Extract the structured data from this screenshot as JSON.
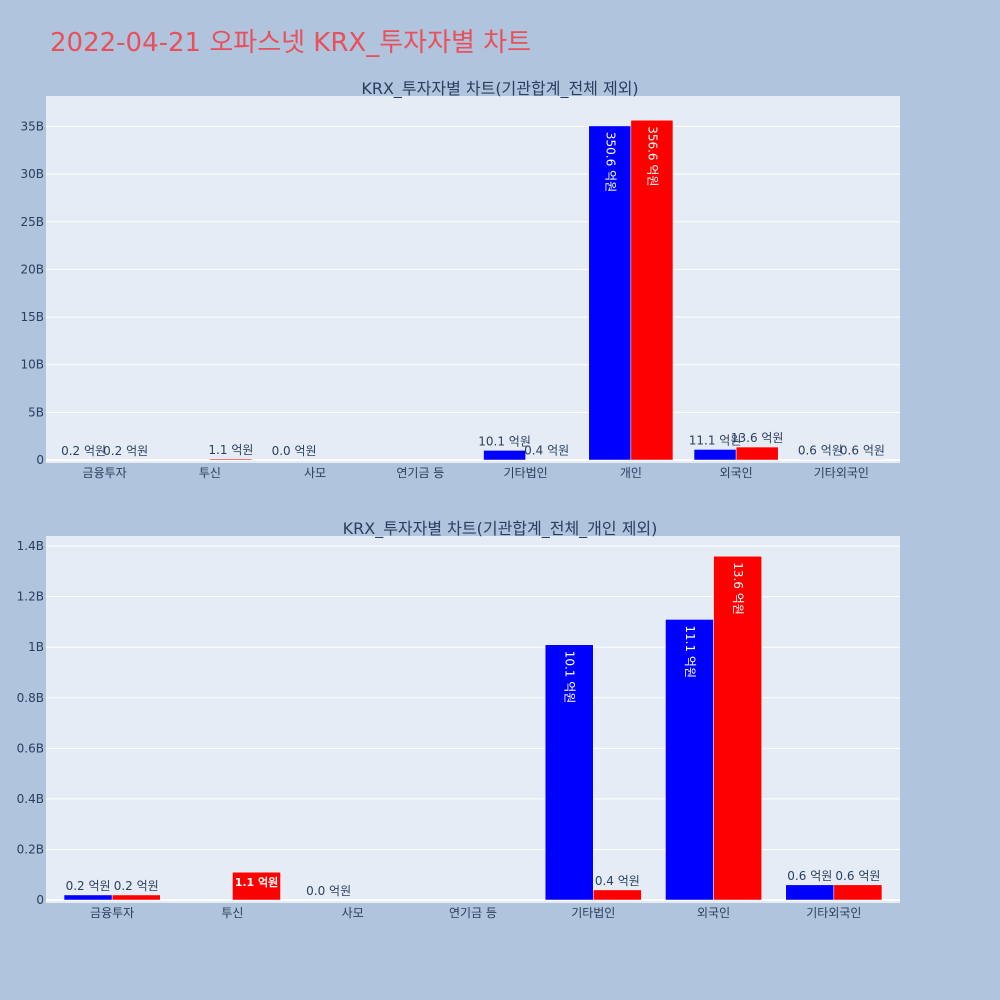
{
  "page_title": "2022-04-21 오파스넷 KRX_투자자별 차트",
  "colors": {
    "background": "#b0c4de",
    "plot_bg": "#e5ecf6",
    "series_a": "#0000ff",
    "series_b": "#ff0000",
    "title": "#e8505b"
  },
  "chart_data": [
    {
      "type": "bar",
      "title": "KRX_투자자별 차트(기관합계_전체 제외)",
      "categories": [
        "금융투자",
        "투신",
        "사모",
        "연기금 등",
        "기타법인",
        "개인",
        "외국인",
        "기타외국인"
      ],
      "series": [
        {
          "values": [
            0.02,
            null,
            0.0,
            null,
            1.01,
            35.06,
            1.11,
            0.06
          ],
          "labels": [
            "0.2 억원",
            "",
            "0.0 억원",
            "",
            "10.1 억원",
            "350.6 억원",
            "11.1 억원",
            "0.6 억원"
          ]
        },
        {
          "values": [
            0.02,
            0.11,
            null,
            null,
            0.04,
            35.66,
            1.36,
            0.06
          ],
          "labels": [
            "0.2 억원",
            "1.1 억원",
            "",
            "",
            "0.4 억원",
            "356.6 억원",
            "13.6 억원",
            "0.6 억원"
          ]
        }
      ],
      "yticks": [
        "0",
        "5B",
        "10B",
        "15B",
        "20B",
        "25B",
        "30B",
        "35B"
      ],
      "ytick_values": [
        0,
        5,
        10,
        15,
        20,
        25,
        30,
        35
      ],
      "ylim": [
        0,
        38.2
      ]
    },
    {
      "type": "bar",
      "title": "KRX_투자자별 차트(기관합계_전체_개인 제외)",
      "categories": [
        "금융투자",
        "투신",
        "사모",
        "연기금 등",
        "기타법인",
        "외국인",
        "기타외국인"
      ],
      "series": [
        {
          "values": [
            0.02,
            null,
            0.0,
            null,
            1.01,
            1.11,
            0.06
          ],
          "labels": [
            "0.2 억원",
            "",
            "0.0 억원",
            "",
            "10.1 억원",
            "11.1 억원",
            "0.6 억원"
          ]
        },
        {
          "values": [
            0.02,
            0.11,
            null,
            null,
            0.04,
            1.36,
            0.06
          ],
          "labels": [
            "0.2 억원",
            "1.1 억원",
            "",
            "",
            "0.4 억원",
            "13.6 억원",
            "0.6 억원"
          ]
        }
      ],
      "yticks": [
        "0",
        "0.2B",
        "0.4B",
        "0.6B",
        "0.8B",
        "1B",
        "1.2B",
        "1.4B"
      ],
      "ytick_values": [
        0,
        0.2,
        0.4,
        0.6,
        0.8,
        1.0,
        1.2,
        1.4
      ],
      "ylim": [
        0,
        1.44
      ]
    }
  ]
}
